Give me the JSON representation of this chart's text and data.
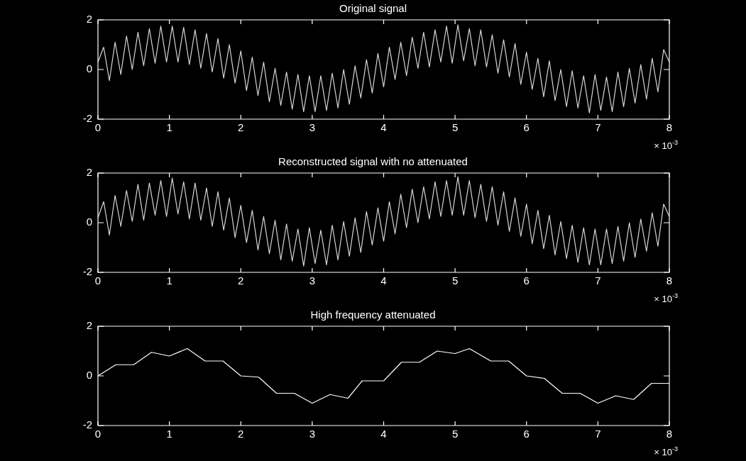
{
  "chart_data": [
    {
      "type": "line",
      "title": "Original signal",
      "annotations": [
        "× 10$^{-3}$"
      ],
      "xlim": [
        0,
        8
      ],
      "xticks": [
        0,
        1,
        2,
        3,
        4,
        5,
        6,
        7,
        8
      ],
      "ylim": [
        -2,
        2
      ],
      "yticks": [
        -2,
        0,
        2
      ],
      "grid": false,
      "legend": false,
      "marker": "none",
      "line_style": "solid",
      "x": [
        0,
        0.08,
        0.16,
        0.24,
        0.32,
        0.4,
        0.48,
        0.56,
        0.64,
        0.72,
        0.8,
        0.88,
        0.96,
        1.04,
        1.12,
        1.2,
        1.28,
        1.36,
        1.44,
        1.52,
        1.6,
        1.68,
        1.76,
        1.84,
        1.92,
        2,
        2.08,
        2.16,
        2.24,
        2.32,
        2.4,
        2.48,
        2.56,
        2.64,
        2.72,
        2.8,
        2.88,
        2.96,
        3.04,
        3.12,
        3.2,
        3.28,
        3.36,
        3.44,
        3.52,
        3.6,
        3.68,
        3.76,
        3.84,
        3.92,
        4,
        4.08,
        4.16,
        4.24,
        4.32,
        4.4,
        4.48,
        4.56,
        4.64,
        4.72,
        4.8,
        4.88,
        4.96,
        5.04,
        5.12,
        5.2,
        5.28,
        5.36,
        5.44,
        5.52,
        5.6,
        5.68,
        5.76,
        5.84,
        5.92,
        6,
        6.08,
        6.16,
        6.24,
        6.32,
        6.4,
        6.48,
        6.56,
        6.64,
        6.72,
        6.8,
        6.88,
        6.96,
        7.04,
        7.12,
        7.2,
        7.28,
        7.36,
        7.44,
        7.52,
        7.6,
        7.68,
        7.76,
        7.84,
        7.92,
        8
      ],
      "series": [
        {
          "color": "#d8d8d8",
          "values": [
            0.3,
            0.9,
            -0.45,
            1.1,
            -0.2,
            1.35,
            0,
            1.5,
            0.15,
            1.65,
            0.25,
            1.75,
            0.3,
            1.75,
            0.3,
            1.7,
            0.2,
            1.6,
            0.05,
            1.45,
            -0.1,
            1.25,
            -0.35,
            1.0,
            -0.55,
            0.75,
            -0.85,
            0.5,
            -1.05,
            0.3,
            -1.3,
            0.05,
            -1.45,
            -0.1,
            -1.6,
            -0.2,
            -1.7,
            -0.25,
            -1.7,
            -0.25,
            -1.65,
            -0.15,
            -1.55,
            0,
            -1.4,
            0.15,
            -1.15,
            0.4,
            -0.95,
            0.65,
            -0.7,
            0.9,
            -0.4,
            1.1,
            -0.25,
            1.3,
            0.05,
            1.5,
            0.1,
            1.6,
            0.3,
            1.75,
            0.25,
            1.8,
            0.35,
            1.65,
            0.15,
            1.6,
            0.1,
            1.4,
            -0.15,
            1.2,
            -0.3,
            1.05,
            -0.6,
            0.7,
            -0.8,
            0.45,
            -1.1,
            0.35,
            -1.25,
            0.0,
            -1.5,
            -0.05,
            -1.55,
            -0.25,
            -1.75,
            -0.2,
            -1.65,
            -0.3,
            -1.7,
            -0.1,
            -1.5,
            0.05,
            -1.35,
            0.2,
            -1.2,
            0.45,
            -0.9,
            0.8,
            0.3
          ]
        }
      ]
    },
    {
      "type": "line",
      "title": "Reconstructed signal with no attenuated",
      "annotations": [
        "× 10$^{-3}$"
      ],
      "xlim": [
        0,
        8
      ],
      "xticks": [
        0,
        1,
        2,
        3,
        4,
        5,
        6,
        7,
        8
      ],
      "ylim": [
        -2,
        2
      ],
      "yticks": [
        -2,
        0,
        2
      ],
      "grid": false,
      "legend": false,
      "marker": "none",
      "line_style": "solid",
      "x": [
        0,
        0.08,
        0.16,
        0.24,
        0.32,
        0.4,
        0.48,
        0.56,
        0.64,
        0.72,
        0.8,
        0.88,
        0.96,
        1.04,
        1.12,
        1.2,
        1.28,
        1.36,
        1.44,
        1.52,
        1.6,
        1.68,
        1.76,
        1.84,
        1.92,
        2,
        2.08,
        2.16,
        2.24,
        2.32,
        2.4,
        2.48,
        2.56,
        2.64,
        2.72,
        2.8,
        2.88,
        2.96,
        3.04,
        3.12,
        3.2,
        3.28,
        3.36,
        3.44,
        3.52,
        3.6,
        3.68,
        3.76,
        3.84,
        3.92,
        4,
        4.08,
        4.16,
        4.24,
        4.32,
        4.4,
        4.48,
        4.56,
        4.64,
        4.72,
        4.8,
        4.88,
        4.96,
        5.04,
        5.12,
        5.2,
        5.28,
        5.36,
        5.44,
        5.52,
        5.6,
        5.68,
        5.76,
        5.84,
        5.92,
        6,
        6.08,
        6.16,
        6.24,
        6.32,
        6.4,
        6.48,
        6.56,
        6.64,
        6.72,
        6.8,
        6.88,
        6.96,
        7.04,
        7.12,
        7.2,
        7.28,
        7.36,
        7.44,
        7.52,
        7.6,
        7.68,
        7.76,
        7.84,
        7.92,
        8
      ],
      "series": [
        {
          "color": "#d8d8d8",
          "values": [
            0.2,
            0.85,
            -0.5,
            1.1,
            -0.15,
            1.3,
            0.05,
            1.55,
            0.1,
            1.6,
            0.3,
            1.7,
            0.25,
            1.8,
            0.35,
            1.65,
            0.15,
            1.6,
            0.1,
            1.4,
            -0.15,
            1.25,
            -0.3,
            1.0,
            -0.6,
            0.7,
            -0.8,
            0.5,
            -1.1,
            0.25,
            -1.25,
            0.1,
            -1.5,
            -0.05,
            -1.55,
            -0.25,
            -1.75,
            -0.2,
            -1.65,
            -0.3,
            -1.7,
            -0.1,
            -1.5,
            0.05,
            -1.35,
            0.2,
            -1.2,
            0.45,
            -0.9,
            0.6,
            -0.75,
            0.85,
            -0.45,
            1.15,
            -0.2,
            1.35,
            0,
            1.45,
            0.15,
            1.65,
            0.25,
            1.7,
            0.3,
            1.85,
            0.3,
            1.7,
            0.2,
            1.55,
            0.05,
            1.45,
            -0.1,
            1.25,
            -0.35,
            1.0,
            -0.55,
            0.75,
            -0.85,
            0.5,
            -1.05,
            0.3,
            -1.3,
            0.05,
            -1.45,
            -0.1,
            -1.6,
            -0.2,
            -1.7,
            -0.25,
            -1.7,
            -0.25,
            -1.65,
            -0.15,
            -1.55,
            0,
            -1.4,
            0.15,
            -1.15,
            0.4,
            -0.95,
            0.75,
            0.25
          ]
        }
      ]
    },
    {
      "type": "line",
      "title": "High frequency attenuated",
      "annotations": [
        "× 10$^{-3}$"
      ],
      "xlim": [
        0,
        8
      ],
      "xticks": [
        0,
        1,
        2,
        3,
        4,
        5,
        6,
        7,
        8
      ],
      "ylim": [
        -2,
        2
      ],
      "yticks": [
        -2,
        0,
        2
      ],
      "grid": false,
      "legend": false,
      "marker": "none",
      "line_style": "solid",
      "x": [
        0,
        0.25,
        0.5,
        0.75,
        1,
        1.25,
        1.5,
        1.75,
        2,
        2.25,
        2.5,
        2.75,
        3,
        3.25,
        3.5,
        3.7,
        4,
        4.25,
        4.5,
        4.75,
        5,
        5.2,
        5.5,
        5.75,
        6,
        6.25,
        6.5,
        6.75,
        7,
        7.25,
        7.5,
        7.75,
        8
      ],
      "series": [
        {
          "color": "#ffffff",
          "values": [
            0,
            0.45,
            0.45,
            0.95,
            0.8,
            1.1,
            0.6,
            0.6,
            0,
            -0.05,
            -0.7,
            -0.7,
            -1.1,
            -0.75,
            -0.9,
            -0.2,
            -0.2,
            0.55,
            0.55,
            1.0,
            0.9,
            1.1,
            0.6,
            0.6,
            0,
            -0.1,
            -0.7,
            -0.7,
            -1.1,
            -0.8,
            -0.95,
            -0.3,
            -0.3
          ]
        }
      ]
    }
  ]
}
